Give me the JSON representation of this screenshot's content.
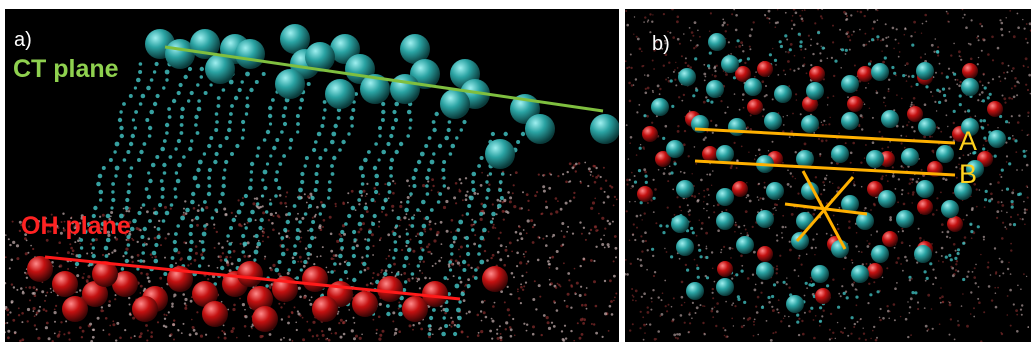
{
  "panels": [
    {
      "label": "a)",
      "ct_label": "CT plane",
      "oh_label": "OH plane"
    },
    {
      "label": "b)",
      "line_labels": [
        "A",
        "B"
      ]
    }
  ],
  "colors": {
    "background": "#000000",
    "ct_atom": "#2aa3a3",
    "oh_atom": "#c41111",
    "ct_line": "#7fbf3f",
    "oh_line": "#ff1a1a",
    "guide_line": "#ffb000",
    "label_yellow": "#ffd21e",
    "ct_text": "#8fd14f",
    "oh_text": "#ff2222"
  }
}
